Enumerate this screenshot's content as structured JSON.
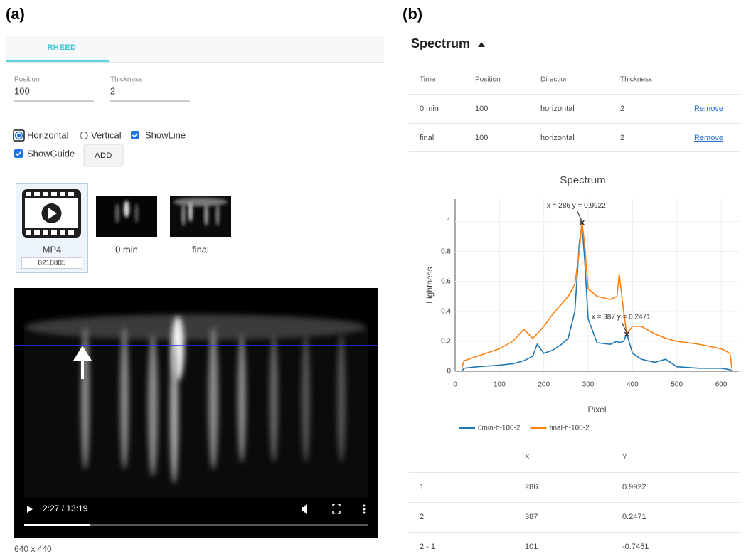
{
  "panel_labels": [
    "(a)",
    "(b)"
  ],
  "left": {
    "tab": "RHEED",
    "fields": [
      {
        "label": "Position",
        "value": "100"
      },
      {
        "label": "Thickness",
        "value": "2"
      }
    ],
    "options": {
      "horizontal": "Horizontal",
      "vertical": "Vertical",
      "show_line": "ShowLine",
      "show_guide": "ShowGuide"
    },
    "add_button": "ADD",
    "media": {
      "label": "MP4",
      "id": "0210805"
    },
    "thumbnails": [
      "0 min",
      "final"
    ],
    "video_time": "2:27 / 13:19",
    "resolution": "640 x 440"
  },
  "right": {
    "title": "Spectrum",
    "table": {
      "headers": [
        "Time",
        "Position",
        "Direction",
        "Thickness"
      ],
      "rows": [
        [
          "0 min",
          "100",
          "horizontal",
          "2"
        ],
        [
          "final",
          "100",
          "horizontal",
          "2"
        ]
      ],
      "action": "Remove"
    },
    "xy_table": {
      "headers": [
        "X",
        "Y"
      ],
      "rows": [
        [
          "1",
          "286",
          "0.9922"
        ],
        [
          "2",
          "387",
          "0.2471"
        ],
        [
          "2 - 1",
          "101",
          "-0.7451"
        ]
      ]
    }
  },
  "chart_data": {
    "type": "line",
    "title": "Spectrum",
    "x_label": "Pixel",
    "y_label": "Lightness",
    "x": [
      15,
      20,
      50,
      100,
      130,
      155,
      175,
      185,
      200,
      220,
      240,
      255,
      270,
      280,
      286,
      292,
      300,
      320,
      350,
      365,
      370,
      380,
      387,
      400,
      420,
      450,
      475,
      500,
      550,
      600,
      620,
      625
    ],
    "series": [
      {
        "name": "0min-h-100-2",
        "color": "#1f77b4",
        "values": [
          0,
          0.02,
          0.03,
          0.04,
          0.05,
          0.07,
          0.1,
          0.18,
          0.12,
          0.14,
          0.18,
          0.22,
          0.4,
          0.85,
          0.99,
          0.75,
          0.35,
          0.19,
          0.18,
          0.2,
          0.19,
          0.2,
          0.25,
          0.12,
          0.08,
          0.06,
          0.08,
          0.03,
          0.02,
          0.02,
          0.01,
          0
        ]
      },
      {
        "name": "final-h-100-2",
        "color": "#ff7f0e",
        "values": [
          0.02,
          0.07,
          0.1,
          0.15,
          0.2,
          0.28,
          0.22,
          0.25,
          0.3,
          0.38,
          0.45,
          0.5,
          0.58,
          0.8,
          1.0,
          0.85,
          0.55,
          0.5,
          0.48,
          0.5,
          0.65,
          0.4,
          0.25,
          0.3,
          0.3,
          0.25,
          0.22,
          0.2,
          0.18,
          0.15,
          0.12,
          0
        ]
      }
    ],
    "annotations": [
      {
        "text": "x = 286 y = 0.9922",
        "x": 286,
        "y": 0.9922
      },
      {
        "text": "x = 387 y = 0.2471",
        "x": 387,
        "y": 0.2471
      }
    ],
    "xlim": [
      0,
      640
    ],
    "ylim": [
      0,
      1.15
    ],
    "xticks": [
      0,
      100,
      200,
      300,
      400,
      500,
      600
    ],
    "yticks": [
      0,
      0.2,
      0.4,
      0.6,
      0.8,
      1
    ],
    "grid": true
  }
}
